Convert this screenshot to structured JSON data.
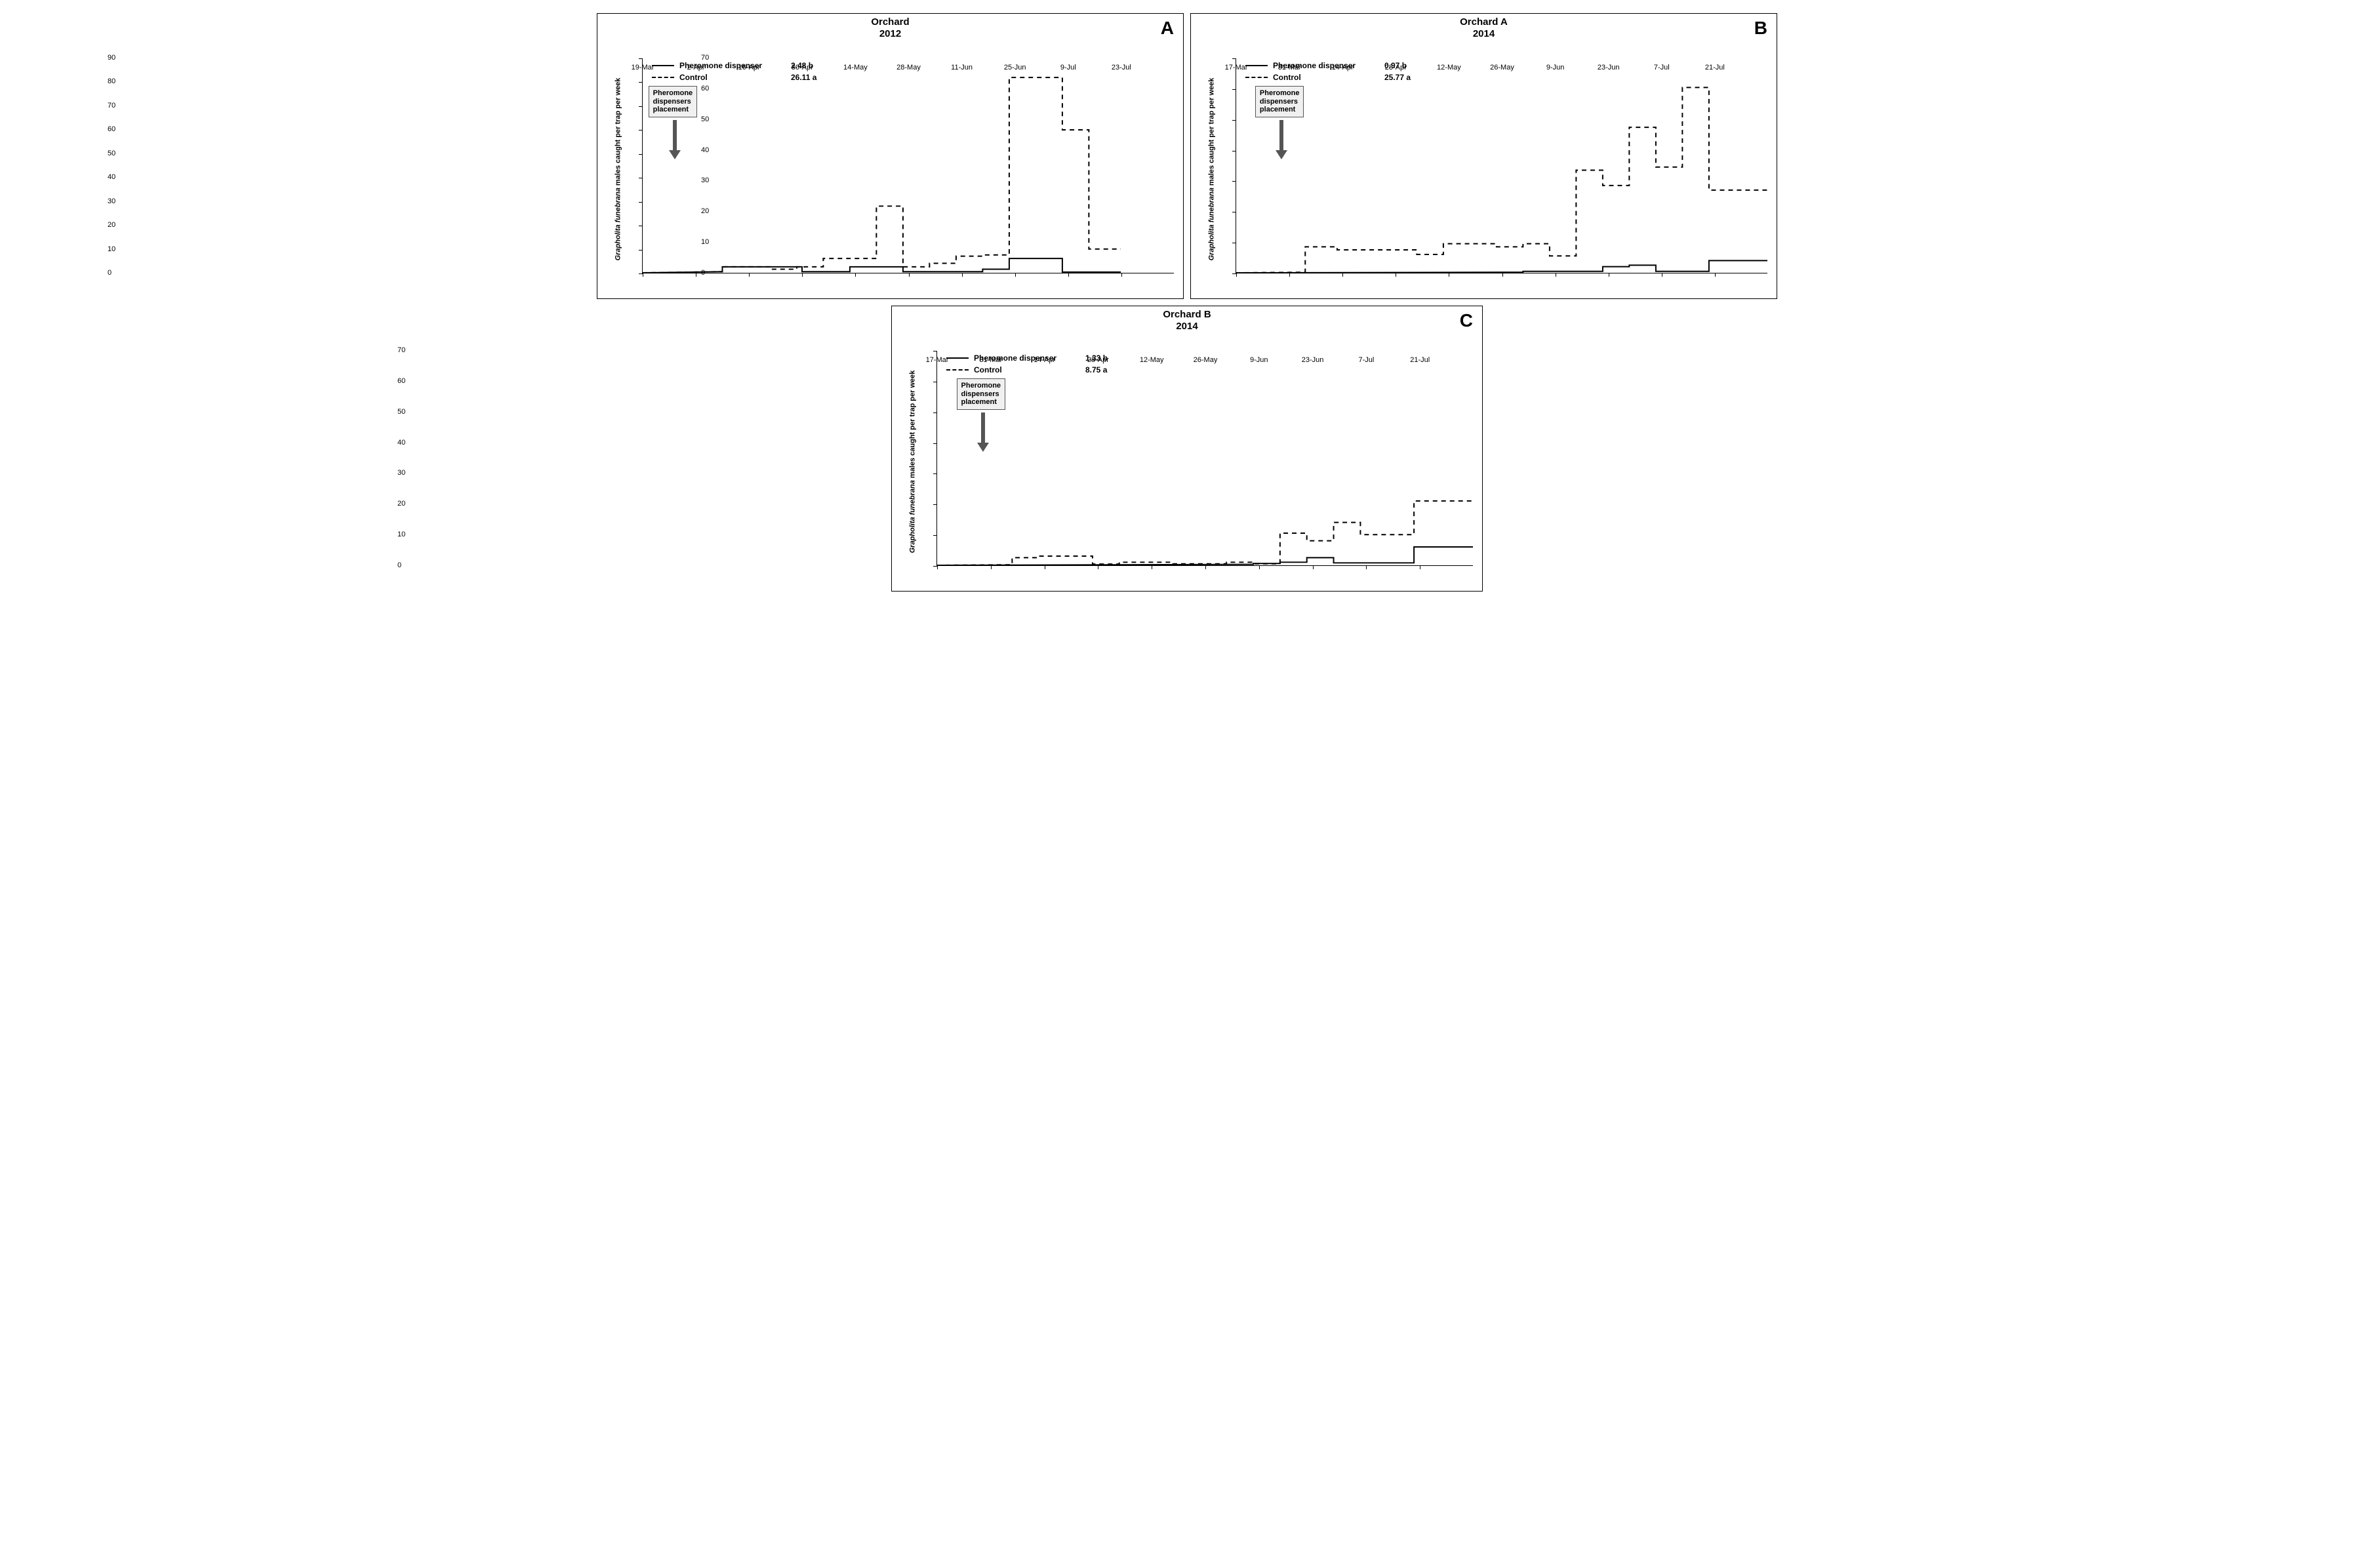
{
  "figure": {
    "y_label_prefix_italic": "Grapholita funebrana",
    "y_label_rest": " males caught per trap per week",
    "callout_text": "Pheromone\ndispensers\nplacement",
    "legend_labels": {
      "solid": "Pheromone dispenser",
      "dashed": "Control"
    },
    "colors": {
      "axis": "#000000",
      "line_solid": "#000000",
      "line_dashed": "#000000",
      "background": "#ffffff",
      "callout_bg": "#f0f0f0",
      "callout_border": "#555555",
      "arrow": "#555555"
    },
    "line_width": 2,
    "dash_pattern": "7,6",
    "font": {
      "title_size": 15,
      "tick_size": 11,
      "legend_size": 12
    }
  },
  "panels": [
    {
      "id": "A",
      "letter": "A",
      "title_line1": "Orchard",
      "title_line2": "2012",
      "ylim": [
        0,
        90
      ],
      "ytick_step": 10,
      "x_labels": [
        "19-Mar",
        "2-Apr",
        "16-Apr",
        "30-Apr",
        "14-May",
        "28-May",
        "11-Jun",
        "25-Jun",
        "9-Jul",
        "23-Jul"
      ],
      "legend_values": {
        "solid": "2.48 b",
        "dashed": "26.11 a"
      },
      "callout": {
        "x_index": 0.6,
        "arrow_x_index": 0.6
      },
      "series": {
        "solid": [
          [
            0,
            0
          ],
          [
            1.5,
            0.5
          ],
          [
            1.5,
            2.5
          ],
          [
            3,
            2.5
          ],
          [
            3,
            0.5
          ],
          [
            3.9,
            0.5
          ],
          [
            3.9,
            2.5
          ],
          [
            4.9,
            2.5
          ],
          [
            4.9,
            0.5
          ],
          [
            6.4,
            0.5
          ],
          [
            6.4,
            1.5
          ],
          [
            6.9,
            1.5
          ],
          [
            6.9,
            6
          ],
          [
            7.9,
            6
          ],
          [
            7.9,
            0.3
          ],
          [
            9,
            0.3
          ]
        ],
        "dashed": [
          [
            0,
            0
          ],
          [
            1.5,
            0.5
          ],
          [
            1.5,
            2.5
          ],
          [
            2.4,
            2.5
          ],
          [
            2.4,
            1.5
          ],
          [
            2.9,
            1.5
          ],
          [
            2.9,
            2.5
          ],
          [
            3.4,
            2.5
          ],
          [
            3.4,
            6
          ],
          [
            4.4,
            6
          ],
          [
            4.4,
            28
          ],
          [
            4.9,
            28
          ],
          [
            4.9,
            2.5
          ],
          [
            5.4,
            2.5
          ],
          [
            5.4,
            4
          ],
          [
            5.9,
            4
          ],
          [
            5.9,
            7
          ],
          [
            6.4,
            7
          ],
          [
            6.4,
            7.5
          ],
          [
            6.9,
            7.5
          ],
          [
            6.9,
            82
          ],
          [
            7.5,
            82
          ],
          [
            7.5,
            82
          ],
          [
            7.9,
            82
          ],
          [
            7.9,
            60
          ],
          [
            8.4,
            60
          ],
          [
            8.4,
            10
          ],
          [
            9,
            10
          ]
        ]
      }
    },
    {
      "id": "B",
      "letter": "B",
      "title_line1": "Orchard A",
      "title_line2": "2014",
      "ylim": [
        0,
        70
      ],
      "ytick_step": 10,
      "x_labels": [
        "17-Mar",
        "31-Mar",
        "14-Apr",
        "28-Apr",
        "12-May",
        "26-May",
        "9-Jun",
        "23-Jun",
        "7-Jul",
        "21-Jul"
      ],
      "legend_values": {
        "solid": "0.97 b",
        "dashed": "25.77 a"
      },
      "callout": {
        "x_index": 0.85,
        "arrow_x_index": 0.85
      },
      "series": {
        "solid": [
          [
            0,
            0
          ],
          [
            5.4,
            0.2
          ],
          [
            5.4,
            0.5
          ],
          [
            6.9,
            0.5
          ],
          [
            6.9,
            2
          ],
          [
            7.4,
            2
          ],
          [
            7.4,
            2.5
          ],
          [
            7.9,
            2.5
          ],
          [
            7.9,
            0.5
          ],
          [
            8.9,
            0.5
          ],
          [
            8.9,
            4
          ],
          [
            10,
            4
          ]
        ],
        "dashed": [
          [
            0,
            0
          ],
          [
            1.3,
            0.2
          ],
          [
            1.3,
            8.5
          ],
          [
            1.9,
            8.5
          ],
          [
            1.9,
            7.5
          ],
          [
            3.4,
            7.5
          ],
          [
            3.4,
            6
          ],
          [
            3.9,
            6
          ],
          [
            3.9,
            9.5
          ],
          [
            4.9,
            9.5
          ],
          [
            4.9,
            8.5
          ],
          [
            5.4,
            8.5
          ],
          [
            5.4,
            9.5
          ],
          [
            5.9,
            9.5
          ],
          [
            5.9,
            5.5
          ],
          [
            6.4,
            5.5
          ],
          [
            6.4,
            33.5
          ],
          [
            6.9,
            33.5
          ],
          [
            6.9,
            28.5
          ],
          [
            7.4,
            28.5
          ],
          [
            7.4,
            47.5
          ],
          [
            7.9,
            47.5
          ],
          [
            7.9,
            34.5
          ],
          [
            8.4,
            34.5
          ],
          [
            8.4,
            60.5
          ],
          [
            8.9,
            60.5
          ],
          [
            8.9,
            27
          ],
          [
            10,
            27
          ]
        ]
      }
    },
    {
      "id": "C",
      "letter": "C",
      "title_line1": "Orchard B",
      "title_line2": "2014",
      "ylim": [
        0,
        70
      ],
      "ytick_step": 10,
      "x_labels": [
        "17-Mar",
        "31-Mar",
        "14-Apr",
        "28-Apr",
        "12-May",
        "26-May",
        "9-Jun",
        "23-Jun",
        "7-Jul",
        "21-Jul"
      ],
      "legend_values": {
        "solid": "1.33 b",
        "dashed": "8.75 a"
      },
      "callout": {
        "x_index": 0.85,
        "arrow_x_index": 0.85
      },
      "series": {
        "solid": [
          [
            0,
            0
          ],
          [
            5.9,
            0.3
          ],
          [
            5.9,
            0.6
          ],
          [
            6.4,
            0.6
          ],
          [
            6.4,
            1
          ],
          [
            6.9,
            1
          ],
          [
            6.9,
            2.5
          ],
          [
            7.4,
            2.5
          ],
          [
            7.4,
            0.8
          ],
          [
            8.9,
            0.8
          ],
          [
            8.9,
            6
          ],
          [
            10,
            6
          ]
        ],
        "dashed": [
          [
            0,
            0
          ],
          [
            1.4,
            0.2
          ],
          [
            1.4,
            2.5
          ],
          [
            1.9,
            2.5
          ],
          [
            1.9,
            3
          ],
          [
            2.9,
            3
          ],
          [
            2.9,
            0.4
          ],
          [
            3.4,
            0.4
          ],
          [
            3.4,
            1
          ],
          [
            4.4,
            1
          ],
          [
            4.4,
            0.5
          ],
          [
            5.4,
            0.5
          ],
          [
            5.4,
            1
          ],
          [
            5.9,
            1
          ],
          [
            5.9,
            0.5
          ],
          [
            6.4,
            0.5
          ],
          [
            6.4,
            10.5
          ],
          [
            6.9,
            10.5
          ],
          [
            6.9,
            8
          ],
          [
            7.4,
            8
          ],
          [
            7.4,
            14
          ],
          [
            7.9,
            14
          ],
          [
            7.9,
            10
          ],
          [
            8.9,
            10
          ],
          [
            8.9,
            21
          ],
          [
            10,
            21
          ]
        ]
      }
    }
  ]
}
